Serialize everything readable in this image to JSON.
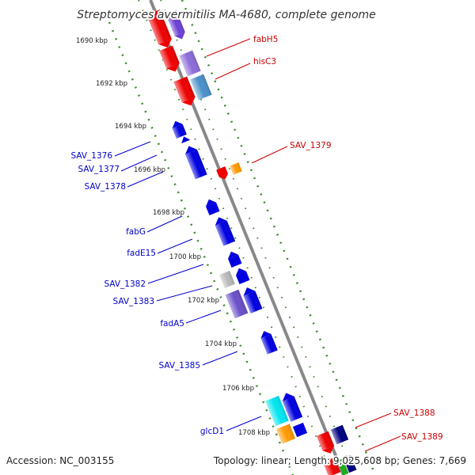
{
  "title": "Streptomyces avermitilis MA-4680, complete genome",
  "footer": {
    "accession": "Accession: NC_003155",
    "summary": "Topology: linear; Length: 9,025,608 bp; Genes: 7,669"
  },
  "kbp_ticks": [
    "1690 kbp",
    "1692 kbp",
    "1694 kbp",
    "1696 kbp",
    "1698 kbp",
    "1700 kbp",
    "1702 kbp",
    "1704 kbp",
    "1706 kbp",
    "1708 kbp"
  ],
  "colors": {
    "forward_label": "#c80000",
    "reverse_label": "#0000c8",
    "backbone": "#888888",
    "track_dots": "#3a8a2a"
  },
  "forward_labels": [
    "fabH5",
    "hisC3",
    "SAV_1379",
    "SAV_1388",
    "SAV_1389"
  ],
  "reverse_labels": [
    "SAV_1376",
    "SAV_1377",
    "SAV_1378",
    "fabG",
    "fadE15",
    "SAV_1382",
    "SAV_1383",
    "fadA5",
    "SAV_1385",
    "glcD1"
  ]
}
